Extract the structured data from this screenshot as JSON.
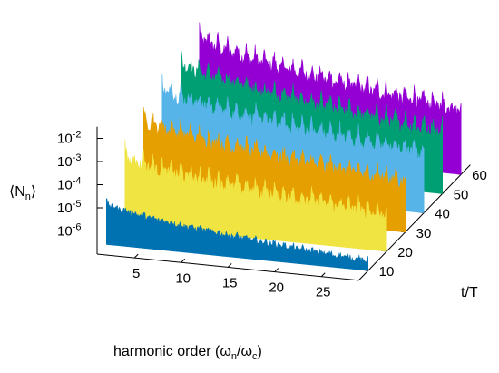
{
  "chart_data": {
    "type": "area",
    "subtype": "3d-waterfall",
    "title": "",
    "xlabel": "harmonic order (ω_n/ω_c)",
    "ylabel": "t/T",
    "zlabel": "⟨N_n⟩",
    "x_ticks": [
      5,
      10,
      15,
      20,
      25
    ],
    "y_ticks": [
      10,
      20,
      30,
      40,
      50,
      60
    ],
    "z_ticks": [
      "10-6",
      "10-5",
      "10-4",
      "10-3",
      "10-2"
    ],
    "z_scale": "log",
    "z_range_log10": [
      -7,
      -1.5
    ],
    "x_range": [
      1,
      29
    ],
    "y_range": [
      5,
      65
    ],
    "grid": false,
    "legend": "none",
    "series": [
      {
        "t": 10,
        "color": "#0072b2",
        "log10_start": -5.2,
        "log10_end": -6.6
      },
      {
        "t": 20,
        "color": "#f0e442",
        "log10_start": -4.1,
        "log10_end": -5.5
      },
      {
        "t": 30,
        "color": "#e69f00",
        "log10_start": -3.3,
        "log10_end": -4.9
      },
      {
        "t": 40,
        "color": "#56b4e9",
        "log10_start": -2.8,
        "log10_end": -4.5
      },
      {
        "t": 50,
        "color": "#009e73",
        "log10_start": -2.5,
        "log10_end": -4.4
      },
      {
        "t": 60,
        "color": "#9400d3",
        "log10_start": -2.2,
        "log10_end": -4.3
      }
    ]
  },
  "labels": {
    "xlabel_prefix": "harmonic order (ω",
    "xlabel_sub1": "n",
    "xlabel_mid": "/ω",
    "xlabel_sub2": "c",
    "xlabel_suffix": ")",
    "ylabel": "t/T",
    "zlabel_open": "⟨N",
    "zlabel_sub": "n",
    "zlabel_close": "⟩",
    "z_tick_base": "10",
    "z_tick_exponents": [
      "-6",
      "-5",
      "-4",
      "-3",
      "-2"
    ]
  }
}
